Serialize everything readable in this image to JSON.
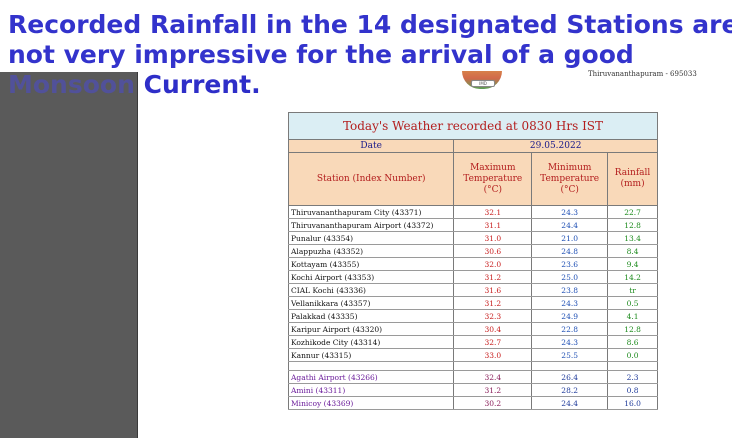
{
  "headline": {
    "line1": "Recorded Rainfall in the 14 designated Stations are",
    "line2": "not very impressive for  the arrival of a good",
    "line3_faded": "Monsoon",
    "line3_rest": " Current."
  },
  "document": {
    "address": "Thiruvananthapuram - 695033",
    "logo_text": "IMD"
  },
  "table": {
    "title": "Today's Weather recorded at 0830 Hrs IST",
    "date_label": "Date",
    "date_value": "29.05.2022",
    "headers": {
      "station": "Station (Index Number)",
      "max_temp": "Maximum Temperature (°C)",
      "min_temp": "Minimum Temperature (°C)",
      "rainfall": "Rainfall (mm)"
    },
    "rows": [
      {
        "station": "Thiruvananthapuram City (43371)",
        "max": "32.1",
        "min": "24.3",
        "rain": "22.7"
      },
      {
        "station": "Thiruvananthapuram Airport (43372)",
        "max": "31.1",
        "min": "24.4",
        "rain": "12.8"
      },
      {
        "station": "Punalur (43354)",
        "max": "31.0",
        "min": "21.0",
        "rain": "13.4"
      },
      {
        "station": "Alappuzha (43352)",
        "max": "30.6",
        "min": "24.8",
        "rain": "8.4"
      },
      {
        "station": "Kottayam (43355)",
        "max": "32.0",
        "min": "23.6",
        "rain": "9.4"
      },
      {
        "station": "Kochi Airport (43353)",
        "max": "31.2",
        "min": "25.0",
        "rain": "14.2"
      },
      {
        "station": "CIAL Kochi (43336)",
        "max": "31.6",
        "min": "23.8",
        "rain": "tr"
      },
      {
        "station": "Vellanikkara (43357)",
        "max": "31.2",
        "min": "24.3",
        "rain": "0.5"
      },
      {
        "station": "Palakkad (43335)",
        "max": "32.3",
        "min": "24.9",
        "rain": "4.1"
      },
      {
        "station": "Karipur Airport (43320)",
        "max": "30.4",
        "min": "22.8",
        "rain": "12.8"
      },
      {
        "station": "Kozhikode City (43314)",
        "max": "32.7",
        "min": "24.3",
        "rain": "8.6"
      },
      {
        "station": "Kannur (43315)",
        "max": "33.0",
        "min": "25.5",
        "rain": "0.0"
      }
    ],
    "island_rows": [
      {
        "station": "Agathi Airport (43266)",
        "max": "32.4",
        "min": "26.4",
        "rain": "2.3"
      },
      {
        "station": "Amini (43311)",
        "max": "31.2",
        "min": "28.2",
        "rain": "0.8"
      },
      {
        "station": "Minicoy (43369)",
        "max": "30.2",
        "min": "24.4",
        "rain": "16.0"
      }
    ]
  },
  "colors": {
    "headline": "#3333cc",
    "title_bg": "#dbeef4",
    "header_bg": "#f9d9b9",
    "max_temp": "#c81e1e",
    "min_temp": "#1e4fb4",
    "rainfall": "#1b8a1b"
  }
}
